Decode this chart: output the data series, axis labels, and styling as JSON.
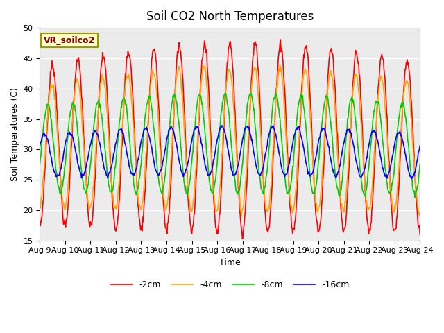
{
  "title": "Soil CO2 North Temperatures",
  "xlabel": "Time",
  "ylabel": "Soil Temperatures (C)",
  "ylim": [
    15,
    50
  ],
  "annotation": "VR_soilco2",
  "xtick_labels": [
    "Aug 9",
    "Aug 10",
    "Aug 11",
    "Aug 12",
    "Aug 13",
    "Aug 14",
    "Aug 15",
    "Aug 16",
    "Aug 17",
    "Aug 18",
    "Aug 19",
    "Aug 20",
    "Aug 21",
    "Aug 22",
    "Aug 23",
    "Aug 24"
  ],
  "colors": {
    "-2cm": "#ff0000",
    "-4cm": "#ffa500",
    "-8cm": "#00cc00",
    "-16cm": "#0000ff"
  },
  "legend_labels": [
    "-2cm",
    "-4cm",
    "-8cm",
    "-16cm"
  ],
  "plot_bg_color": "#ebebeb",
  "n_days": 15,
  "title_fontsize": 12,
  "axis_label_fontsize": 9,
  "tick_fontsize": 8
}
